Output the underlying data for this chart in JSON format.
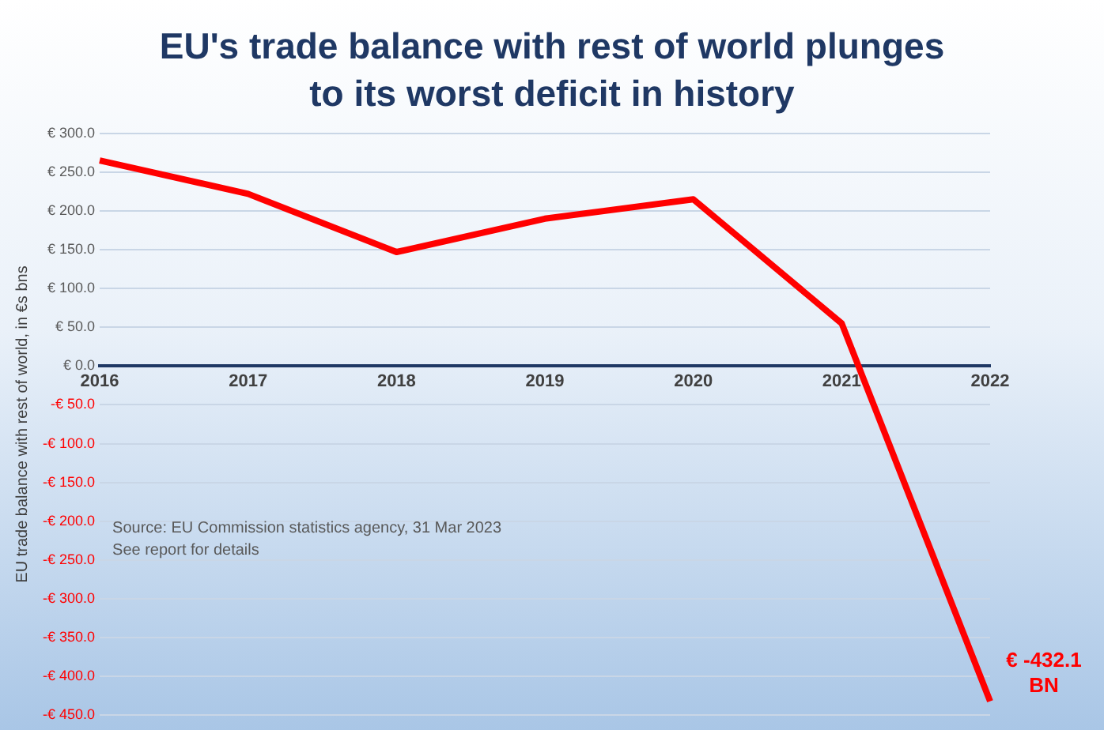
{
  "chart_data": {
    "type": "line",
    "title": "EU's trade balance with rest of world plunges to its worst deficit in history",
    "ylabel": "EU trade balance with rest of world, in €s bns",
    "categories": [
      "2016",
      "2017",
      "2018",
      "2019",
      "2020",
      "2021",
      "2022"
    ],
    "series": [
      {
        "color": "#ff0000",
        "values": [
          265,
          222,
          147,
          190,
          215,
          55,
          -432.1
        ],
        "value_labels": [
          null,
          null,
          null,
          null,
          null,
          null,
          "€ -432.1 BN"
        ]
      }
    ],
    "ylim": [
      -450,
      300
    ],
    "yticks": [
      {
        "value": 300,
        "label": "€ 300.0"
      },
      {
        "value": 250,
        "label": "€ 250.0"
      },
      {
        "value": 200,
        "label": "€ 200.0"
      },
      {
        "value": 150,
        "label": "€ 150.0"
      },
      {
        "value": 100,
        "label": "€ 100.0"
      },
      {
        "value": 50,
        "label": "€ 50.0"
      },
      {
        "value": 0,
        "label": "€ 0.0"
      },
      {
        "value": -50,
        "label": "-€ 50.0"
      },
      {
        "value": -100,
        "label": "-€ 100.0"
      },
      {
        "value": -150,
        "label": "-€ 150.0"
      },
      {
        "value": -200,
        "label": "-€ 200.0"
      },
      {
        "value": -250,
        "label": "-€ 250.0"
      },
      {
        "value": -300,
        "label": "-€ 300.0"
      },
      {
        "value": -350,
        "label": "-€ 350.0"
      },
      {
        "value": -400,
        "label": "-€ 400.0"
      },
      {
        "value": -450,
        "label": "-€ 450.0"
      }
    ],
    "grid": "y",
    "legend": false,
    "marker": "none",
    "line_style": "solid",
    "annotations": [
      "Source: EU Commission statistics agency, 31 Mar 2023",
      "See report for details"
    ]
  }
}
